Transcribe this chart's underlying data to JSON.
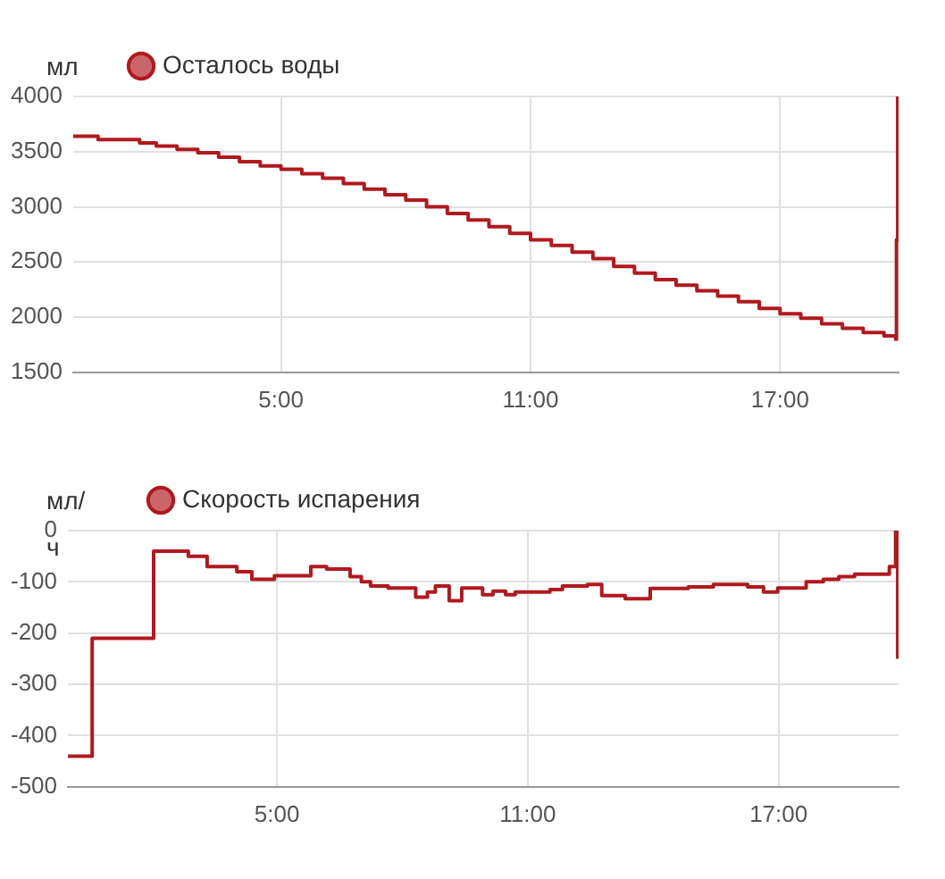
{
  "chart_data": [
    {
      "type": "step",
      "ylabel": "мл",
      "legend": "top left",
      "grid": true,
      "marker": "none",
      "xlim": [
        0,
        19.85
      ],
      "xticks": [
        {
          "value": 5,
          "label": "5:00"
        },
        {
          "value": 11,
          "label": "11:00"
        },
        {
          "value": 17,
          "label": "17:00"
        }
      ],
      "ylim": [
        1500,
        4000
      ],
      "yticks": [
        1500,
        2000,
        2500,
        3000,
        3500,
        4000
      ],
      "series": [
        {
          "name": "Осталось воды",
          "color": "#b0191e",
          "x": [
            0,
            0.6,
            1.6,
            2,
            2.5,
            3,
            3.5,
            4,
            4.5,
            5,
            5.5,
            6,
            6.5,
            7,
            7.5,
            8,
            8.5,
            9,
            9.5,
            10,
            10.5,
            11,
            11.5,
            12,
            12.5,
            13,
            13.5,
            14,
            14.5,
            15,
            15.5,
            16,
            16.5,
            17,
            17.5,
            18,
            18.5,
            19,
            19.5,
            19.78,
            19.8,
            19.83
          ],
          "values": [
            3640,
            3610,
            3580,
            3550,
            3520,
            3490,
            3450,
            3410,
            3370,
            3340,
            3300,
            3260,
            3210,
            3160,
            3110,
            3060,
            3000,
            2940,
            2880,
            2820,
            2760,
            2700,
            2650,
            2590,
            2530,
            2460,
            2400,
            2340,
            2290,
            2240,
            2190,
            2140,
            2080,
            2030,
            1990,
            1940,
            1900,
            1860,
            1830,
            1800,
            2700,
            4000
          ]
        }
      ]
    },
    {
      "type": "step",
      "ylabel": "мл/ч",
      "legend": "top left",
      "grid": true,
      "marker": "none",
      "xlim": [
        0,
        19.87
      ],
      "xticks": [
        {
          "value": 5,
          "label": "5:00"
        },
        {
          "value": 11,
          "label": "11:00"
        },
        {
          "value": 17,
          "label": "17:00"
        }
      ],
      "ylim": [
        -500,
        0
      ],
      "yticks": [
        -500,
        -400,
        -300,
        -200,
        -100,
        0
      ],
      "series": [
        {
          "name": "Скорость испарения",
          "color": "#b0191e",
          "x": [
            0,
            0.58,
            2.05,
            2.88,
            3.33,
            4.04,
            4.4,
            4.94,
            5.81,
            6.19,
            6.75,
            7.02,
            7.24,
            7.66,
            8.32,
            8.6,
            8.79,
            9.12,
            9.42,
            9.92,
            10.17,
            10.47,
            10.7,
            11.53,
            11.83,
            12.43,
            12.77,
            13.33,
            13.93,
            14.84,
            15.44,
            16.26,
            16.64,
            16.98,
            17.66,
            18.07,
            18.44,
            18.82,
            19.65,
            19.8,
            19.85
          ],
          "values": [
            -440,
            -210,
            -40,
            -50,
            -70,
            -80,
            -95,
            -88,
            -70,
            -75,
            -90,
            -100,
            -108,
            -112,
            -130,
            -120,
            -108,
            -137,
            -112,
            -125,
            -118,
            -125,
            -120,
            -115,
            -108,
            -105,
            -127,
            -133,
            -113,
            -110,
            -105,
            -110,
            -120,
            -112,
            -100,
            -95,
            -90,
            -85,
            -70,
            0,
            -250
          ]
        }
      ]
    }
  ]
}
